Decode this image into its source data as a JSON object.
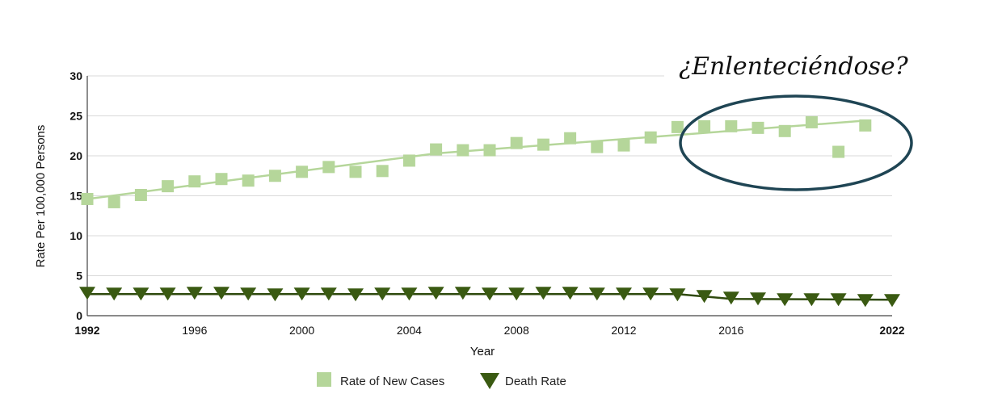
{
  "chart_data": {
    "type": "scatter",
    "title": "",
    "xlabel": "Year",
    "ylabel": "Rate Per 100,000 Persons",
    "xlim": [
      1992,
      2022
    ],
    "ylim": [
      0,
      30
    ],
    "x_ticks": [
      {
        "label": "1992",
        "value": 1992,
        "bold": true
      },
      {
        "label": "1996",
        "value": 1996,
        "bold": false
      },
      {
        "label": "2000",
        "value": 2000,
        "bold": false
      },
      {
        "label": "2004",
        "value": 2004,
        "bold": false
      },
      {
        "label": "2008",
        "value": 2008,
        "bold": false
      },
      {
        "label": "2012",
        "value": 2012,
        "bold": false
      },
      {
        "label": "2016",
        "value": 2016,
        "bold": false
      },
      {
        "label": "2022",
        "value": 2022,
        "bold": true
      }
    ],
    "y_ticks": [
      0,
      5,
      10,
      15,
      20,
      25,
      30
    ],
    "grid": true,
    "legend_position": "bottom",
    "annotation": {
      "text": "¿Enlenteciéndose?",
      "circle_years": [
        2015,
        2022
      ]
    },
    "series": [
      {
        "name": "Rate of New Cases",
        "marker": "square",
        "color": "#b5d69a",
        "line_color": "#b5d69a",
        "points": [
          [
            1992,
            14.6
          ],
          [
            1993,
            14.2
          ],
          [
            1994,
            15.1
          ],
          [
            1995,
            16.2
          ],
          [
            1996,
            16.8
          ],
          [
            1997,
            17.1
          ],
          [
            1998,
            16.9
          ],
          [
            1999,
            17.5
          ],
          [
            2000,
            18.0
          ],
          [
            2001,
            18.6
          ],
          [
            2002,
            18.0
          ],
          [
            2003,
            18.1
          ],
          [
            2004,
            19.4
          ],
          [
            2005,
            20.8
          ],
          [
            2006,
            20.7
          ],
          [
            2007,
            20.7
          ],
          [
            2008,
            21.6
          ],
          [
            2009,
            21.4
          ],
          [
            2010,
            22.2
          ],
          [
            2011,
            21.1
          ],
          [
            2012,
            21.3
          ],
          [
            2013,
            22.3
          ],
          [
            2014,
            23.6
          ],
          [
            2015,
            23.7
          ],
          [
            2016,
            23.7
          ],
          [
            2017,
            23.5
          ],
          [
            2018,
            23.1
          ],
          [
            2019,
            24.2
          ],
          [
            2020,
            20.5
          ],
          [
            2021,
            23.8
          ]
        ],
        "trend": [
          [
            1992,
            14.6
          ],
          [
            2005,
            20.3
          ],
          [
            2021,
            24.4
          ]
        ]
      },
      {
        "name": "Death Rate",
        "marker": "triangle-down",
        "color": "#3a5a12",
        "line_color": "#2f4a0e",
        "points": [
          [
            1992,
            2.9
          ],
          [
            1993,
            2.8
          ],
          [
            1994,
            2.8
          ],
          [
            1995,
            2.8
          ],
          [
            1996,
            2.9
          ],
          [
            1997,
            2.9
          ],
          [
            1998,
            2.8
          ],
          [
            1999,
            2.7
          ],
          [
            2000,
            2.8
          ],
          [
            2001,
            2.8
          ],
          [
            2002,
            2.7
          ],
          [
            2003,
            2.8
          ],
          [
            2004,
            2.8
          ],
          [
            2005,
            2.9
          ],
          [
            2006,
            2.9
          ],
          [
            2007,
            2.8
          ],
          [
            2008,
            2.8
          ],
          [
            2009,
            2.9
          ],
          [
            2010,
            2.9
          ],
          [
            2011,
            2.8
          ],
          [
            2012,
            2.8
          ],
          [
            2013,
            2.8
          ],
          [
            2014,
            2.7
          ],
          [
            2015,
            2.5
          ],
          [
            2016,
            2.3
          ],
          [
            2017,
            2.2
          ],
          [
            2018,
            2.1
          ],
          [
            2019,
            2.1
          ],
          [
            2020,
            2.1
          ],
          [
            2021,
            2.0
          ],
          [
            2022,
            2.0
          ]
        ],
        "trend": [
          [
            1992,
            2.7
          ],
          [
            2014,
            2.7
          ],
          [
            2016,
            2.1
          ],
          [
            2022,
            2.0
          ]
        ]
      }
    ]
  }
}
